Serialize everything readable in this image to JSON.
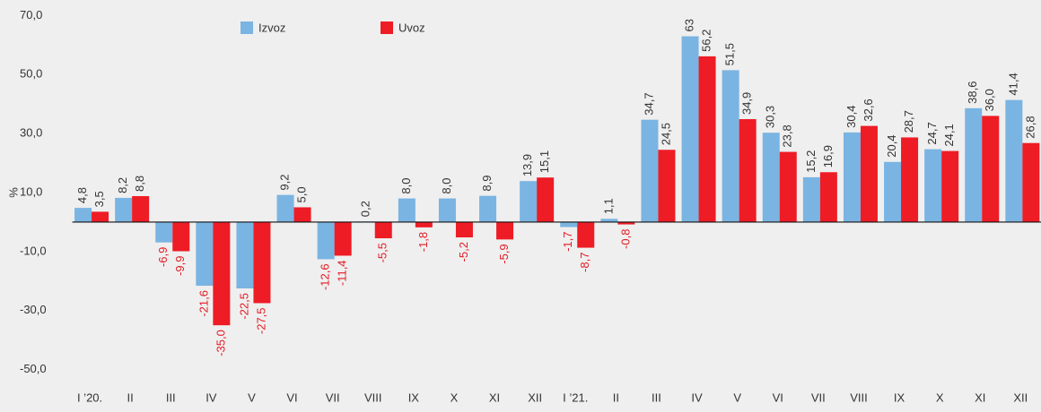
{
  "chart_data": {
    "type": "bar",
    "y_label": "%",
    "categories": [
      "I ’20.",
      "II",
      "III",
      "IV",
      "V",
      "VI",
      "VII",
      "VIII",
      "IX",
      "X",
      "XI",
      "XII",
      "I ’21.",
      "II",
      "III",
      "IV",
      "V",
      "VI",
      "VII",
      "VIII",
      "IX",
      "X",
      "XI",
      "XII"
    ],
    "series": [
      {
        "name": "Izvoz",
        "color": "#7ab4e2",
        "values": [
          4.8,
          8.2,
          -6.9,
          -21.6,
          -22.5,
          9.2,
          -12.6,
          0.2,
          8.0,
          8.0,
          8.9,
          13.9,
          -1.7,
          1.1,
          34.7,
          63,
          51.5,
          30.3,
          15.2,
          30.4,
          20.4,
          24.7,
          38.6,
          41.4
        ],
        "value_labels": [
          "4,8",
          "8,2",
          "-6,9",
          "-21,6",
          "-22,5",
          "9,2",
          "-12,6",
          "0,2",
          "8,0",
          "8,0",
          "8,9",
          "13,9",
          "-1,7",
          "1,1",
          "34,7",
          "63",
          "51,5",
          "30,3",
          "15,2",
          "30,4",
          "20,4",
          "24,7",
          "38,6",
          "41,4"
        ]
      },
      {
        "name": "Uvoz",
        "color": "#ee1c25",
        "values": [
          3.5,
          8.8,
          -9.9,
          -35.0,
          -27.5,
          5.0,
          -11.4,
          -5.5,
          -1.8,
          -5.2,
          -5.9,
          15.1,
          -8.7,
          -0.8,
          24.5,
          56.2,
          34.9,
          23.8,
          16.9,
          32.6,
          28.7,
          24.1,
          36.0,
          26.8
        ],
        "value_labels": [
          "3,5",
          "8,8",
          "-9,9",
          "-35,0",
          "-27,5",
          "5,0",
          "-11,4",
          "-5,5",
          "-1,8",
          "-5,2",
          "-5,9",
          "15,1",
          "-8,7",
          "-0,8",
          "24,5",
          "56,2",
          "34,9",
          "23,8",
          "16,9",
          "32,6",
          "28,7",
          "24,1",
          "36,0",
          "26,8"
        ]
      }
    ],
    "ylim": [
      -55,
      75
    ],
    "yticks": [
      {
        "value": 70,
        "label": "70,0"
      },
      {
        "value": 50,
        "label": "50,0"
      },
      {
        "value": 30,
        "label": "30,0"
      },
      {
        "value": 10,
        "label": "10,0"
      },
      {
        "value": -10,
        "label": "-10,0"
      },
      {
        "value": -30,
        "label": "-30,0"
      },
      {
        "value": -50,
        "label": "-50,0"
      }
    ],
    "grid": false,
    "legend": "top",
    "negative_label_color": "#e31b23"
  }
}
